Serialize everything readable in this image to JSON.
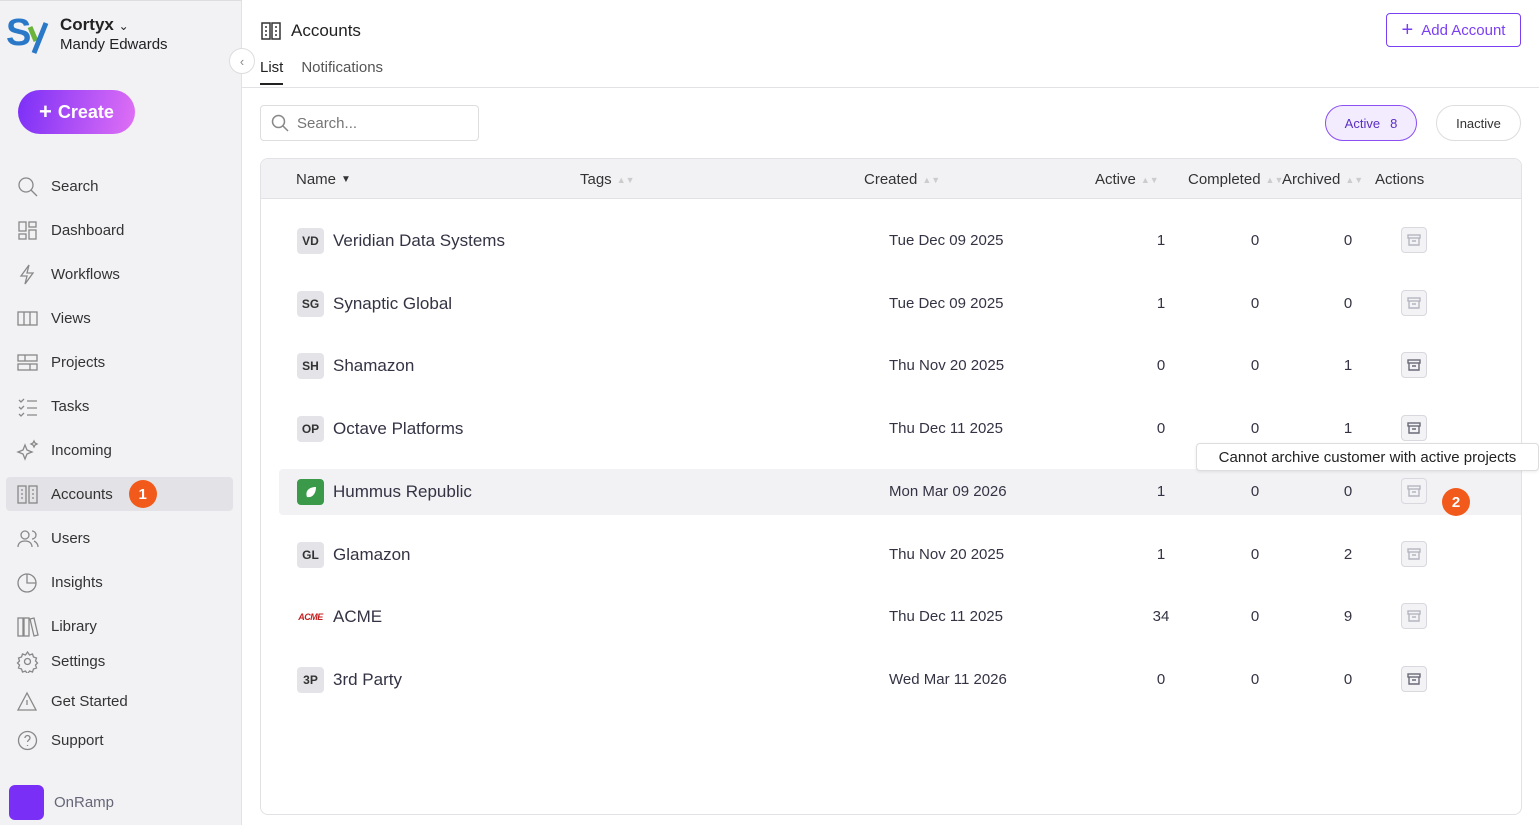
{
  "sidebar": {
    "org": "Cortyx",
    "user": "Mandy Edwards",
    "create_label": "Create",
    "items": [
      {
        "label": "Search",
        "icon": "search-icon"
      },
      {
        "label": "Dashboard",
        "icon": "dashboard-icon"
      },
      {
        "label": "Workflows",
        "icon": "lightning-icon"
      },
      {
        "label": "Views",
        "icon": "columns-icon"
      },
      {
        "label": "Projects",
        "icon": "projects-icon"
      },
      {
        "label": "Tasks",
        "icon": "tasks-icon"
      },
      {
        "label": "Incoming",
        "icon": "sparkle-icon"
      },
      {
        "label": "Accounts",
        "icon": "building-icon",
        "active": true,
        "badge": "1"
      },
      {
        "label": "Users",
        "icon": "users-icon"
      },
      {
        "label": "Insights",
        "icon": "pie-chart-icon"
      },
      {
        "label": "Library",
        "icon": "library-icon"
      },
      {
        "label": "Settings",
        "icon": "gear-icon"
      },
      {
        "label": "Get Started",
        "icon": "warning-icon"
      },
      {
        "label": "Support",
        "icon": "help-icon"
      }
    ],
    "footer": "OnRamp"
  },
  "header": {
    "title": "Accounts",
    "add_label": "Add Account",
    "tabs": [
      "List",
      "Notifications"
    ]
  },
  "filters": {
    "search_placeholder": "Search...",
    "active_label": "Active",
    "active_count": "8",
    "inactive_label": "Inactive"
  },
  "table": {
    "columns": [
      "Name",
      "Tags",
      "Created",
      "Active",
      "Completed",
      "Archived",
      "Actions"
    ],
    "rows": [
      {
        "initials": "VD",
        "name": "Veridian Data Systems",
        "created": "Tue Dec 09 2025",
        "active": "1",
        "completed": "0",
        "archived": "0",
        "archive_enabled": false
      },
      {
        "initials": "SG",
        "name": "Synaptic Global",
        "created": "Tue Dec 09 2025",
        "active": "1",
        "completed": "0",
        "archived": "0",
        "archive_enabled": false
      },
      {
        "initials": "SH",
        "name": "Shamazon",
        "created": "Thu Nov 20 2025",
        "active": "0",
        "completed": "0",
        "archived": "1",
        "archive_enabled": true
      },
      {
        "initials": "OP",
        "name": "Octave Platforms",
        "created": "Thu Dec 11 2025",
        "active": "0",
        "completed": "0",
        "archived": "1",
        "archive_enabled": true
      },
      {
        "initials": "",
        "logo": "leaf-logo",
        "name": "Hummus Republic",
        "created": "Mon Mar 09 2026",
        "active": "1",
        "completed": "0",
        "archived": "0",
        "archive_enabled": false
      },
      {
        "initials": "GL",
        "name": "Glamazon",
        "created": "Thu Nov 20 2025",
        "active": "1",
        "completed": "0",
        "archived": "2",
        "archive_enabled": false
      },
      {
        "initials": "",
        "logo": "acme-logo",
        "logo_text": "ACME",
        "name": "ACME",
        "created": "Thu Dec 11 2025",
        "active": "34",
        "completed": "0",
        "archived": "9",
        "archive_enabled": false
      },
      {
        "initials": "3P",
        "name": "3rd Party",
        "created": "Wed Mar 11 2026",
        "active": "0",
        "completed": "0",
        "archived": "0",
        "archive_enabled": true
      }
    ]
  },
  "tooltip": "Cannot archive customer with active projects",
  "step_badge": "2",
  "colors": {
    "accent": "#7b3ff2",
    "badge": "#f25a1b"
  }
}
